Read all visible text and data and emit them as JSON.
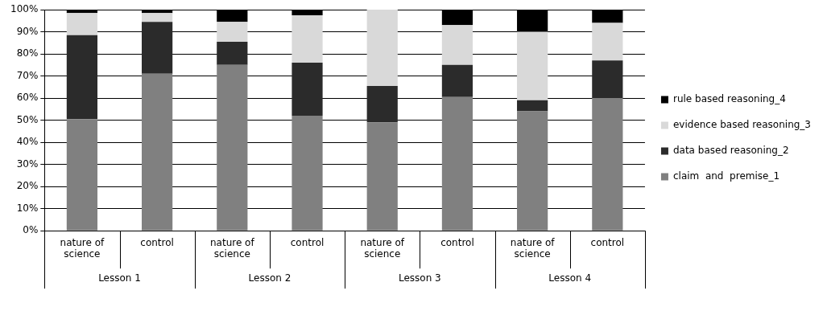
{
  "chart_data": {
    "type": "bar",
    "stacked": true,
    "categories": [
      "nature of science",
      "control",
      "nature of science",
      "control",
      "nature of science",
      "control",
      "nature of science",
      "control"
    ],
    "series": [
      {
        "name": "claim  and  premise_1",
        "color": "#808080",
        "values": [
          50.5,
          71,
          75,
          52,
          49,
          60.5,
          54,
          60
        ]
      },
      {
        "name": "data based reasoning_2",
        "color": "#2b2b2b",
        "values": [
          38,
          23.5,
          10.5,
          24,
          16.5,
          14.5,
          5,
          17
        ]
      },
      {
        "name": "evidence based reasoning_3",
        "color": "#d9d9d9",
        "values": [
          10,
          4,
          9,
          21.5,
          34.5,
          18,
          31,
          17
        ]
      },
      {
        "name": "rule based reasoning_4",
        "color": "#000000",
        "values": [
          1.5,
          1.5,
          5.5,
          2.5,
          0,
          7,
          10,
          6
        ]
      }
    ],
    "annotations": [
      "Lesson 1",
      "Lesson 2",
      "Lesson 3",
      "Lesson 4"
    ],
    "ylim": [
      0,
      100
    ],
    "yticks": [
      {
        "value": 0,
        "label": "0%"
      },
      {
        "value": 10,
        "label": "10%"
      },
      {
        "value": 20,
        "label": "20%"
      },
      {
        "value": 30,
        "label": "30%"
      },
      {
        "value": 40,
        "label": "40%"
      },
      {
        "value": 50,
        "label": "50%"
      },
      {
        "value": 60,
        "label": "60%"
      },
      {
        "value": 70,
        "label": "70%"
      },
      {
        "value": 80,
        "label": "80%"
      },
      {
        "value": 90,
        "label": "90%"
      },
      {
        "value": 100,
        "label": "100%"
      }
    ],
    "grid": "y",
    "legend": "right"
  }
}
